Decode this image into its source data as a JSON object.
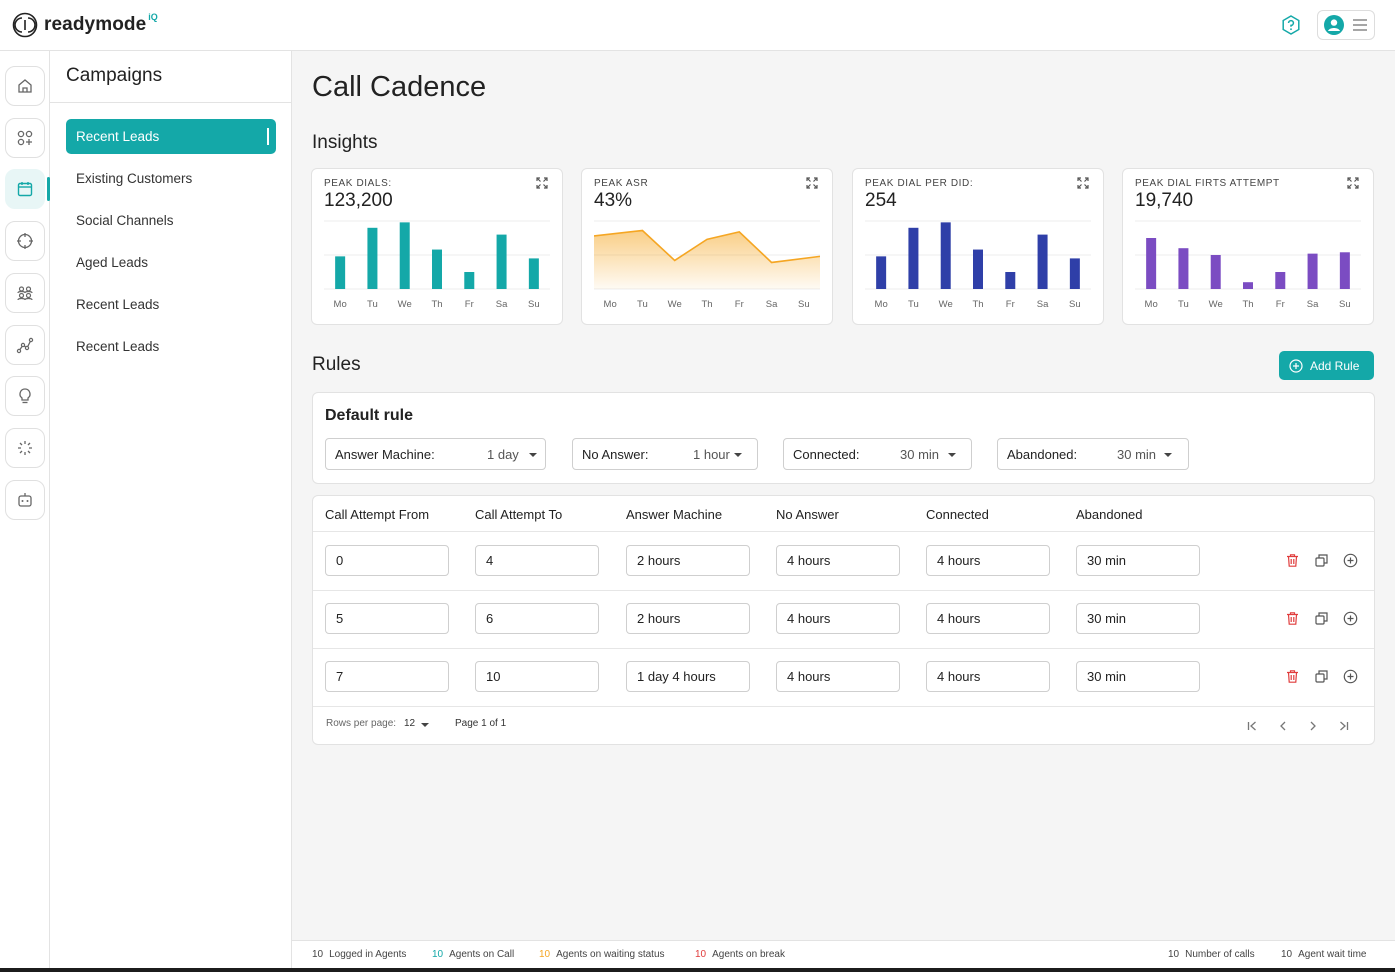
{
  "brand": {
    "name": "readymode",
    "suffix": "iQ"
  },
  "campaigns": {
    "title": "Campaigns",
    "items": [
      {
        "label": "Recent Leads",
        "active": true
      },
      {
        "label": "Existing Customers"
      },
      {
        "label": "Social Channels"
      },
      {
        "label": "Aged Leads"
      },
      {
        "label": "Recent Leads"
      },
      {
        "label": "Recent Leads"
      }
    ]
  },
  "nav_icons": [
    "home-icon",
    "apps-icon",
    "calendar-icon",
    "target-icon",
    "team-icon",
    "analytics-icon",
    "lightbulb-icon",
    "loader-icon",
    "robot-icon"
  ],
  "page": {
    "title": "Call Cadence",
    "insights_title": "Insights",
    "rules_title": "Rules",
    "add_rule_label": "Add Rule"
  },
  "colors": {
    "accent": "#14a8a8",
    "orange": "#f5a623",
    "blue": "#2f3fa8",
    "purple": "#7b4cc2",
    "danger": "#e03c3c"
  },
  "insights": [
    {
      "label": "PEAK DIALS:",
      "value": "123,200"
    },
    {
      "label": "PEAK ASR",
      "value": "43%"
    },
    {
      "label": "PEAK DIAL PER DID:",
      "value": "254"
    },
    {
      "label": "PEAK DIAL FIRTS ATTEMPT",
      "value": "19,740"
    }
  ],
  "chart_data": [
    {
      "type": "bar",
      "categories": [
        "Mo",
        "Tu",
        "We",
        "Th",
        "Fr",
        "Sa",
        "Su"
      ],
      "values": [
        48,
        90,
        98,
        58,
        25,
        80,
        45
      ],
      "color": "#14a8a8"
    },
    {
      "type": "area",
      "categories": [
        "Mo",
        "Tu",
        "We",
        "Th",
        "Fr",
        "Sa",
        "Su"
      ],
      "values": [
        78,
        86,
        42,
        73,
        84,
        39,
        48
      ],
      "color": "#f5a623"
    },
    {
      "type": "bar",
      "categories": [
        "Mo",
        "Tu",
        "We",
        "Th",
        "Fr",
        "Sa",
        "Su"
      ],
      "values": [
        48,
        90,
        98,
        58,
        25,
        80,
        45
      ],
      "color": "#2f3fa8"
    },
    {
      "type": "bar",
      "categories": [
        "Mo",
        "Tu",
        "We",
        "Th",
        "Fr",
        "Sa",
        "Su"
      ],
      "values": [
        75,
        60,
        50,
        10,
        25,
        52,
        54
      ],
      "color": "#7b4cc2"
    }
  ],
  "default_rule": {
    "title": "Default rule",
    "selects": [
      {
        "label": "Answer Machine:",
        "value": "1 day"
      },
      {
        "label": "No Answer:",
        "value": "1 hour"
      },
      {
        "label": "Connected:",
        "value": "30 min"
      },
      {
        "label": "Abandoned:",
        "value": "30 min"
      }
    ]
  },
  "rules_table": {
    "headers": [
      "Call Attempt From",
      "Call Attempt To",
      "Answer Machine",
      "No Answer",
      "Connected",
      "Abandoned"
    ],
    "rows": [
      [
        "0",
        "4",
        "2 hours",
        "4 hours",
        "4 hours",
        "30 min"
      ],
      [
        "5",
        "6",
        "2 hours",
        "4 hours",
        "4 hours",
        "30 min"
      ],
      [
        "7",
        "10",
        "1 day 4 hours",
        "4 hours",
        "4 hours",
        "30 min"
      ]
    ],
    "pagination": {
      "rows_label": "Rows per page:",
      "rows_value": "12",
      "page_text": "Page 1 of 1"
    }
  },
  "footer": {
    "left": [
      {
        "num": "10",
        "label": "Logged in Agents",
        "color": "#222222"
      },
      {
        "num": "10",
        "label": "Agents on Call",
        "color": "#14a8a8"
      },
      {
        "num": "10",
        "label": "Agents on waiting status",
        "color": "#f5a623"
      },
      {
        "num": "10",
        "label": "Agents on break",
        "color": "#e03c3c"
      }
    ],
    "right": [
      {
        "num": "10",
        "label": "Number of calls"
      },
      {
        "num": "10",
        "label": "Agent wait time"
      }
    ]
  }
}
